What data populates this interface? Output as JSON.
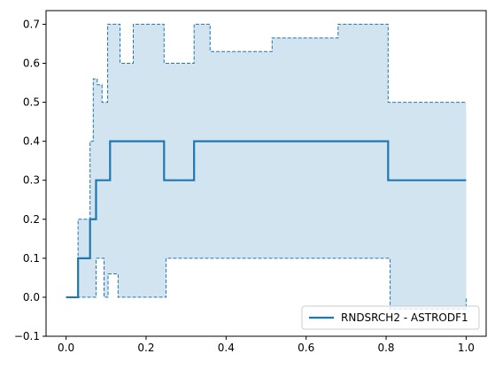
{
  "chart_data": {
    "type": "line",
    "title": "",
    "xlabel": "",
    "ylabel": "",
    "xlim": [
      -0.05,
      1.05
    ],
    "ylim": [
      -0.1,
      0.735
    ],
    "xticks": [
      0.0,
      0.2,
      0.4,
      0.6,
      0.8,
      1.0
    ],
    "xtick_labels": [
      "0.0",
      "0.2",
      "0.4",
      "0.6",
      "0.8",
      "1.0"
    ],
    "yticks": [
      -0.1,
      0.0,
      0.1,
      0.2,
      0.3,
      0.4,
      0.5,
      0.6,
      0.7
    ],
    "ytick_labels": [
      "−0.1",
      "0.0",
      "0.1",
      "0.2",
      "0.3",
      "0.4",
      "0.5",
      "0.6",
      "0.7"
    ],
    "grid": false,
    "legend_position": "lower-right",
    "colors": {
      "line": "#1f77b4",
      "band_fill": "#1f77b4"
    },
    "series": [
      {
        "name": "RNDSRCH2 - ASTRODF1",
        "step": "post",
        "x": [
          0.0,
          0.03,
          0.06,
          0.075,
          0.11,
          0.245,
          0.32,
          0.805,
          1.0
        ],
        "y": [
          0.0,
          0.1,
          0.2,
          0.3,
          0.4,
          0.3,
          0.4,
          0.3,
          0.3
        ]
      }
    ],
    "confidence_band": {
      "step": "post",
      "upper": {
        "x": [
          0.0,
          0.03,
          0.06,
          0.068,
          0.078,
          0.09,
          0.104,
          0.112,
          0.135,
          0.168,
          0.245,
          0.32,
          0.36,
          0.515,
          0.68,
          0.805,
          1.0
        ],
        "y": [
          0.0,
          0.2,
          0.4,
          0.56,
          0.545,
          0.5,
          0.7,
          0.7,
          0.6,
          0.7,
          0.6,
          0.7,
          0.63,
          0.665,
          0.7,
          0.5,
          0.5
        ]
      },
      "lower": {
        "x": [
          0.0,
          0.075,
          0.095,
          0.105,
          0.11,
          0.13,
          0.25,
          0.8,
          0.81,
          1.0
        ],
        "y": [
          0.0,
          0.1,
          0.0,
          0.06,
          0.06,
          0.0,
          0.1,
          0.1,
          -0.03,
          0.0
        ]
      }
    }
  }
}
